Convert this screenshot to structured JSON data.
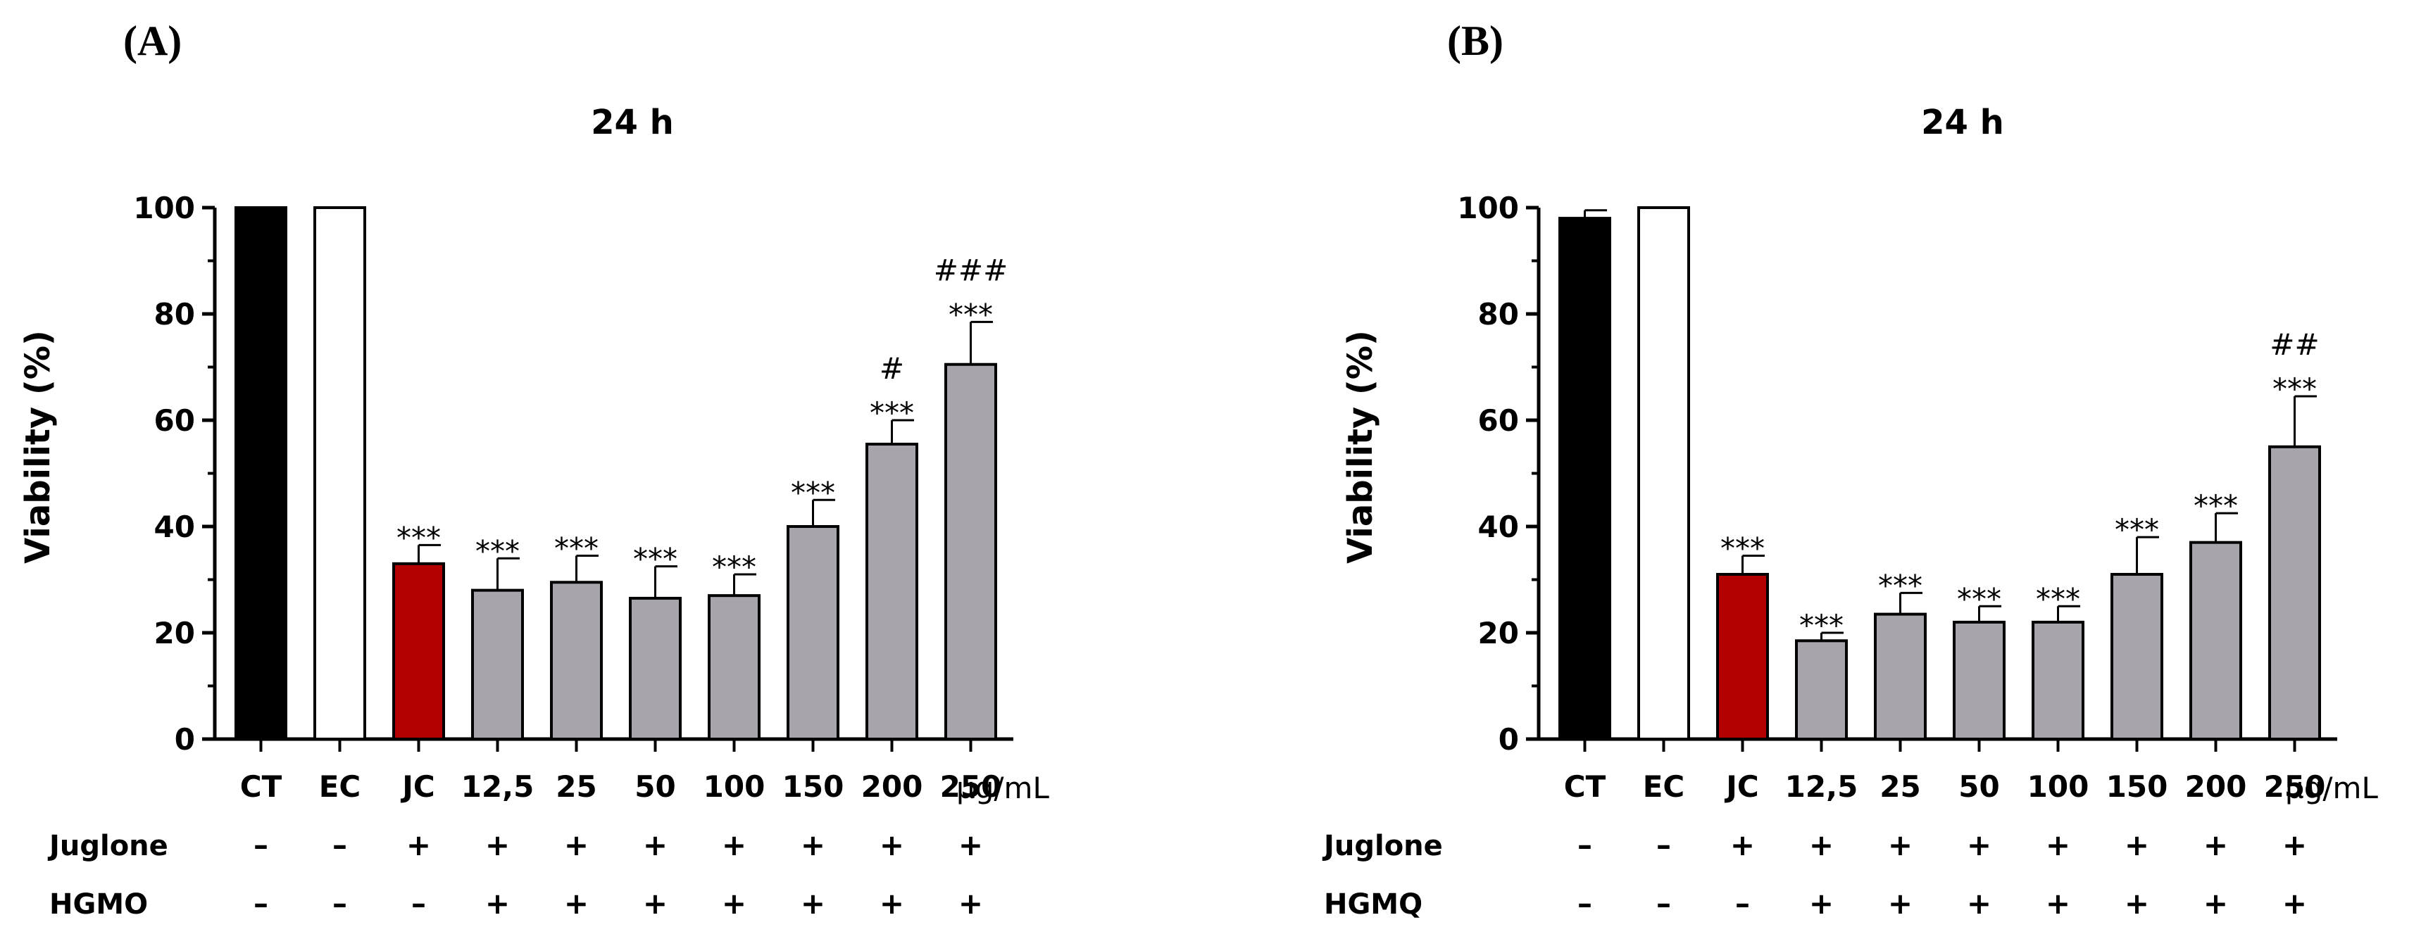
{
  "chart_data": [
    {
      "type": "bar",
      "panel": "(A)",
      "title": "24 h",
      "ylabel": "Viability (%)",
      "ylim": [
        0,
        100
      ],
      "yticks": [
        "0",
        "20",
        "40",
        "60",
        "80",
        "100"
      ],
      "categories": [
        "CT",
        "EC",
        "JC",
        "12,5",
        "25",
        "50",
        "100",
        "150",
        "200",
        "250"
      ],
      "unit": "µg/mL",
      "values": [
        100,
        100,
        33,
        28,
        29.5,
        26.5,
        27,
        40,
        55.5,
        70.5
      ],
      "errors": [
        0,
        0,
        3.5,
        6,
        5,
        6,
        4,
        5,
        4.5,
        8
      ],
      "fills": [
        "#000000",
        "#ffffff",
        "#b30000",
        "#a7a5ab",
        "#a7a5ab",
        "#a7a5ab",
        "#a7a5ab",
        "#a7a5ab",
        "#a7a5ab",
        "#a7a5ab"
      ],
      "annotations": [
        [],
        [],
        [
          "***"
        ],
        [
          "***"
        ],
        [
          "***"
        ],
        [
          "***"
        ],
        [
          "***"
        ],
        [
          "***"
        ],
        [
          "***",
          "#"
        ],
        [
          "***",
          "###"
        ]
      ],
      "rows": [
        {
          "label": "Juglone",
          "signs": [
            "–",
            "–",
            "+",
            "+",
            "+",
            "+",
            "+",
            "+",
            "+",
            "+"
          ]
        },
        {
          "label": "HGMO",
          "signs": [
            "–",
            "–",
            "–",
            "+",
            "+",
            "+",
            "+",
            "+",
            "+",
            "+"
          ]
        }
      ]
    },
    {
      "type": "bar",
      "panel": "(B)",
      "title": "24 h",
      "ylabel": "Viability (%)",
      "ylim": [
        0,
        100
      ],
      "yticks": [
        "0",
        "20",
        "40",
        "60",
        "80",
        "100"
      ],
      "categories": [
        "CT",
        "EC",
        "JC",
        "12,5",
        "25",
        "50",
        "100",
        "150",
        "200",
        "250"
      ],
      "unit": "µg/mL",
      "values": [
        98,
        100,
        31,
        18.5,
        23.5,
        22,
        22,
        31,
        37,
        55
      ],
      "errors": [
        1.5,
        0,
        3.5,
        1.5,
        4,
        3,
        3,
        7,
        5.5,
        9.5
      ],
      "fills": [
        "#000000",
        "#ffffff",
        "#b30000",
        "#a7a5ab",
        "#a7a5ab",
        "#a7a5ab",
        "#a7a5ab",
        "#a7a5ab",
        "#a7a5ab",
        "#a7a5ab"
      ],
      "annotations": [
        [],
        [],
        [
          "***"
        ],
        [
          "***"
        ],
        [
          "***"
        ],
        [
          "***"
        ],
        [
          "***"
        ],
        [
          "***"
        ],
        [
          "***"
        ],
        [
          "***",
          "##"
        ]
      ],
      "rows": [
        {
          "label": "Juglone",
          "signs": [
            "–",
            "–",
            "+",
            "+",
            "+",
            "+",
            "+",
            "+",
            "+",
            "+"
          ]
        },
        {
          "label": "HGMQ",
          "signs": [
            "–",
            "–",
            "–",
            "+",
            "+",
            "+",
            "+",
            "+",
            "+",
            "+"
          ]
        }
      ]
    }
  ]
}
